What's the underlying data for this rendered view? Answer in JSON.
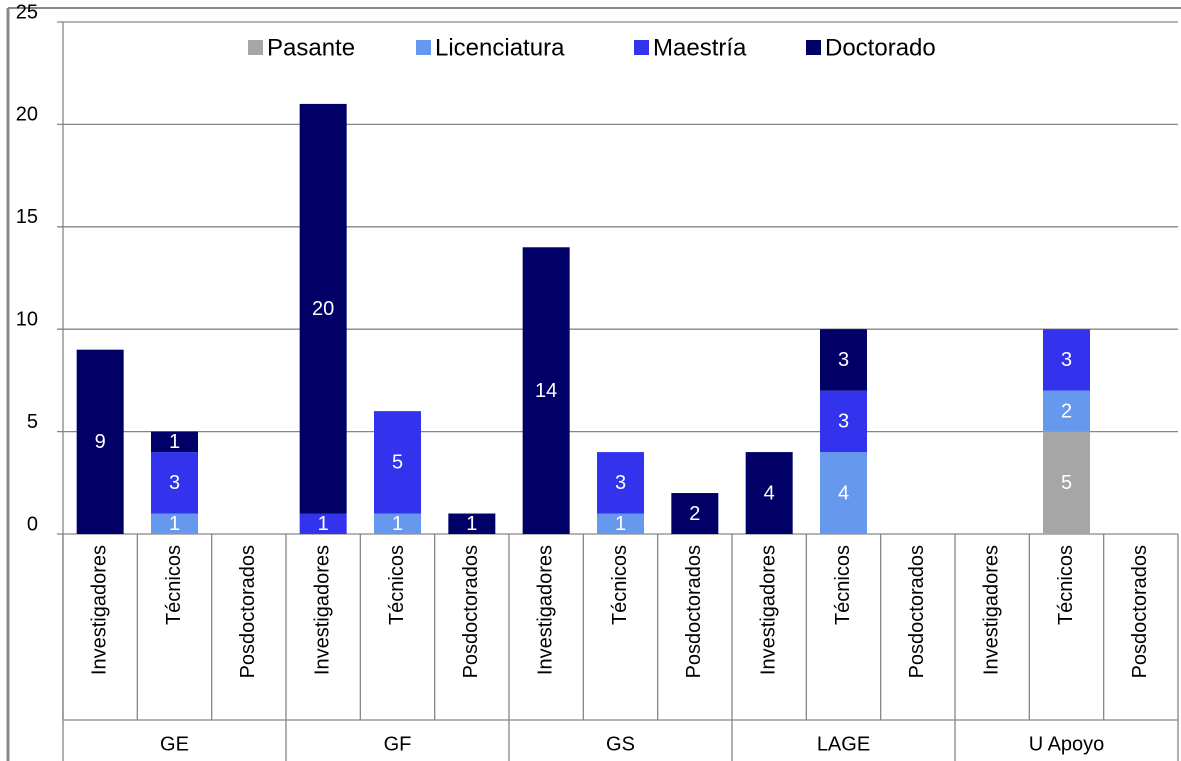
{
  "chart_data": {
    "type": "stacked_bar",
    "categories": [
      "Investigadores",
      "Técnicos",
      "Posdoctorados",
      "Investigadores",
      "Técnicos",
      "Posdoctorados",
      "Investigadores",
      "Técnicos",
      "Posdoctorados",
      "Investigadores",
      "Técnicos",
      "Posdoctorados",
      "Investigadores",
      "Técnicos",
      "Posdoctorados"
    ],
    "groups": [
      "GE",
      "GF",
      "GS",
      "LAGE",
      "U Apoyo"
    ],
    "series": [
      {
        "name": "Pasante",
        "color": "#a6a6a6",
        "values": [
          null,
          null,
          null,
          null,
          null,
          null,
          null,
          null,
          null,
          null,
          null,
          null,
          null,
          5,
          null
        ]
      },
      {
        "name": "Licenciatura",
        "color": "#6699ee",
        "values": [
          null,
          1,
          null,
          null,
          1,
          null,
          null,
          1,
          null,
          null,
          4,
          null,
          null,
          2,
          null
        ]
      },
      {
        "name": "Maestría",
        "color": "#3333ee",
        "values": [
          null,
          3,
          null,
          1,
          5,
          null,
          null,
          3,
          null,
          null,
          3,
          null,
          null,
          3,
          null
        ]
      },
      {
        "name": "Doctorado",
        "color": "#000066",
        "values": [
          9,
          1,
          null,
          20,
          null,
          1,
          14,
          null,
          2,
          4,
          3,
          null,
          null,
          null,
          null
        ]
      }
    ],
    "ylim": [
      0,
      25
    ],
    "yticks": [
      0,
      5,
      10,
      15,
      20,
      25
    ],
    "grid": true,
    "legend": "top"
  }
}
